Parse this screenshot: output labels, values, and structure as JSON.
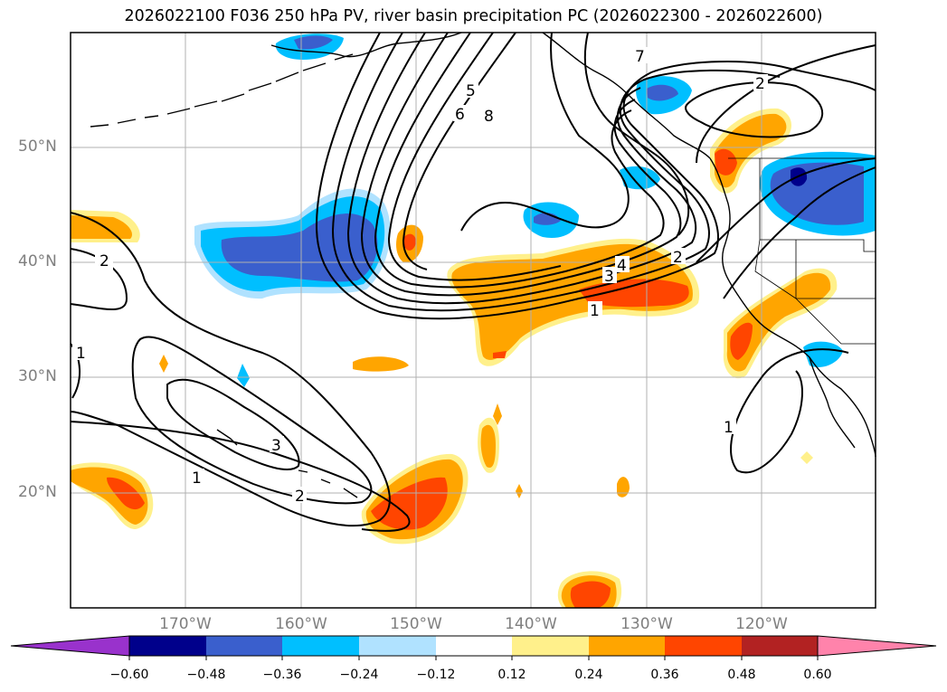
{
  "title": "2026022100 F036 250 hPa PV, river basin precipitation PC (2026022300 - 2026022600)",
  "map": {
    "lat_labels": [
      "50°N",
      "40°N",
      "30°N",
      "20°N"
    ],
    "lon_labels": [
      "170°W",
      "160°W",
      "150°W",
      "140°W",
      "130°W",
      "120°W"
    ],
    "extent": {
      "lon": [
        -180,
        -110
      ],
      "lat": [
        10,
        60
      ]
    },
    "gridlines": true
  },
  "contours": {
    "variable": "250 hPa PV",
    "labels": [
      "1",
      "1",
      "1",
      "1",
      "2",
      "2",
      "2",
      "2",
      "3",
      "3",
      "4",
      "5",
      "6",
      "7",
      "8"
    ]
  },
  "colorbar": {
    "ticks": [
      "−0.60",
      "−0.48",
      "−0.36",
      "−0.24",
      "−0.12",
      "0.12",
      "0.24",
      "0.36",
      "0.48",
      "0.60"
    ],
    "colors": [
      "#9932cc",
      "#00008b",
      "#3a5fcd",
      "#00bfff",
      "#b0e2ff",
      "#ffffff",
      "#fff08b",
      "#ffa500",
      "#ff4500",
      "#b22222",
      "#ff83ab"
    ]
  },
  "colors": {
    "neg_strong": "#00008b",
    "neg_mid": "#3a5fcd",
    "neg_light": "#00bfff",
    "neg_faint": "#b0e2ff",
    "pos_faint": "#fff08b",
    "pos_light": "#ffa500",
    "pos_mid": "#ff4500",
    "grid": "#b0b0b0",
    "axis_text": "#7f7f7f"
  }
}
